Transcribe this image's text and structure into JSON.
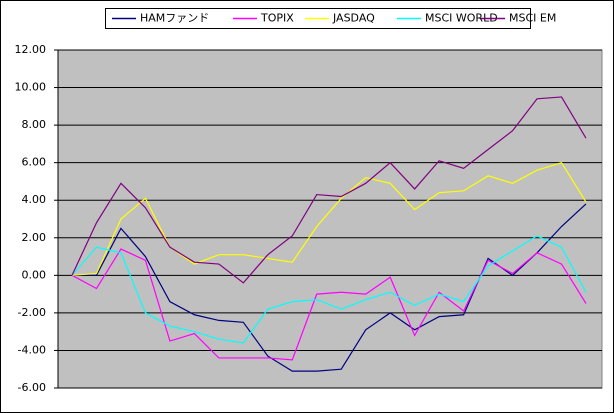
{
  "chart_data": {
    "type": "line",
    "series": [
      {
        "name": "HAMファンド",
        "color": "#000080",
        "values": [
          0,
          0,
          2.5,
          1.0,
          -1.4,
          -2.1,
          -2.4,
          -2.5,
          -4.3,
          -5.1,
          -5.1,
          -5.0,
          -2.9,
          -2.0,
          -2.9,
          -2.2,
          -2.1,
          0.9,
          0.0,
          1.2,
          2.6,
          3.8
        ]
      },
      {
        "name": "TOPIX",
        "color": "#ff00ff",
        "values": [
          0,
          -0.7,
          1.4,
          0.8,
          -3.5,
          -3.1,
          -4.4,
          -4.4,
          -4.4,
          -4.5,
          -1.0,
          -0.9,
          -1.0,
          -0.1,
          -3.2,
          -0.9,
          -1.9,
          0.8,
          0.1,
          1.2,
          0.6,
          -1.5
        ]
      },
      {
        "name": "JASDAQ",
        "color": "#ffff00",
        "values": [
          0,
          0.1,
          3.0,
          4.1,
          1.5,
          0.6,
          1.1,
          1.1,
          0.9,
          0.7,
          2.6,
          4.1,
          5.2,
          4.9,
          3.5,
          4.4,
          4.5,
          5.3,
          4.9,
          5.6,
          6.0,
          3.9
        ]
      },
      {
        "name": "MSCI WORLD",
        "color": "#00ffff",
        "values": [
          0,
          1.5,
          1.2,
          -2.0,
          -2.7,
          -3.0,
          -3.4,
          -3.6,
          -1.8,
          -1.4,
          -1.3,
          -1.8,
          -1.3,
          -0.9,
          -1.6,
          -1.0,
          -1.4,
          0.5,
          1.3,
          2.1,
          1.5,
          -0.9
        ]
      },
      {
        "name": "MSCI EM",
        "color": "#800080",
        "values": [
          0,
          2.8,
          4.9,
          3.6,
          1.5,
          0.7,
          0.6,
          -0.4,
          1.1,
          2.1,
          4.3,
          4.2,
          4.9,
          6.0,
          4.6,
          6.1,
          5.7,
          6.7,
          7.7,
          9.4,
          9.5,
          7.3
        ]
      }
    ],
    "ylim": [
      -6,
      12
    ],
    "yticks": [
      {
        "value": -6,
        "label": "-6.00"
      },
      {
        "value": -4,
        "label": "-4.00"
      },
      {
        "value": -2,
        "label": "-2.00"
      },
      {
        "value": 0,
        "label": "0.00"
      },
      {
        "value": 2,
        "label": "2.00"
      },
      {
        "value": 4,
        "label": "4.00"
      },
      {
        "value": 6,
        "label": "6.00"
      },
      {
        "value": 8,
        "label": "8.00"
      },
      {
        "value": 10,
        "label": "10.00"
      },
      {
        "value": 12,
        "label": "12.00"
      }
    ],
    "grid": true,
    "legend": "top",
    "plot_background": "#c0c0c0"
  }
}
